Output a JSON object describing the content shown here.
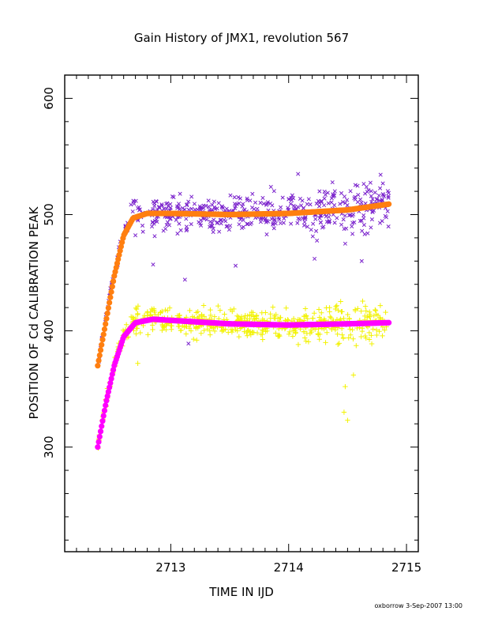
{
  "chart_data": {
    "type": "scatter",
    "title": "Gain History of JMX1, revolution 567",
    "xlabel": "TIME IN IJD",
    "ylabel": "POSITION OF Cd CALIBRATION PEAK",
    "xlim": [
      2712.1,
      2715.1
    ],
    "ylim": [
      210,
      620
    ],
    "x_ticks": [
      2713,
      2714,
      2715
    ],
    "y_ticks": [
      300,
      400,
      500,
      600
    ],
    "x_minor_step": 0.1,
    "y_minor_step": 20,
    "grid": false,
    "footer": "oxborrow  3-Sep-2007 13:00",
    "series": [
      {
        "role": "upper-raw-points",
        "marker": "x",
        "color": "#7a22cc",
        "x_start": 2712.38,
        "x_end": 2714.85,
        "n": 520,
        "seed": 11,
        "spread": 13,
        "spread_from_x": 2714.0,
        "spread_late": 18,
        "outliers": [
          [
            2713.12,
            444
          ],
          [
            2713.15,
            389
          ],
          [
            2712.85,
            457
          ],
          [
            2713.55,
            456
          ],
          [
            2714.22,
            462
          ],
          [
            2714.48,
            475
          ],
          [
            2714.62,
            460
          ],
          [
            2714.08,
            535
          ]
        ],
        "curve": [
          [
            2712.38,
            374
          ],
          [
            2712.45,
            412
          ],
          [
            2712.52,
            450
          ],
          [
            2712.6,
            485
          ],
          [
            2712.68,
            499
          ],
          [
            2712.8,
            502
          ],
          [
            2713.0,
            501
          ],
          [
            2713.5,
            500
          ],
          [
            2714.0,
            501
          ],
          [
            2714.5,
            504
          ],
          [
            2714.85,
            510
          ]
        ]
      },
      {
        "role": "lower-raw-points",
        "marker": "+",
        "color": "#f2f200",
        "x_start": 2712.38,
        "x_end": 2714.85,
        "n": 560,
        "seed": 29,
        "spread": 10,
        "spread_from_x": 2714.3,
        "spread_late": 15,
        "outliers": [
          [
            2714.47,
            330
          ],
          [
            2714.5,
            323
          ],
          [
            2714.48,
            352
          ],
          [
            2714.55,
            362
          ],
          [
            2713.22,
            392
          ],
          [
            2712.72,
            372
          ]
        ],
        "curve": [
          [
            2712.38,
            300
          ],
          [
            2712.45,
            340
          ],
          [
            2712.52,
            372
          ],
          [
            2712.6,
            396
          ],
          [
            2712.7,
            408
          ],
          [
            2712.85,
            410
          ],
          [
            2713.0,
            409
          ],
          [
            2713.5,
            406
          ],
          [
            2714.0,
            405
          ],
          [
            2714.5,
            406
          ],
          [
            2714.85,
            408
          ]
        ]
      },
      {
        "role": "upper-fit",
        "marker": "dot",
        "color": "#ff7f10",
        "x_start": 2712.38,
        "x_end": 2714.85,
        "n": 300,
        "curve": [
          [
            2712.38,
            370
          ],
          [
            2712.45,
            408
          ],
          [
            2712.52,
            447
          ],
          [
            2712.6,
            482
          ],
          [
            2712.68,
            497
          ],
          [
            2712.8,
            501
          ],
          [
            2713.0,
            501
          ],
          [
            2713.5,
            500
          ],
          [
            2714.0,
            501
          ],
          [
            2714.5,
            504
          ],
          [
            2714.85,
            509
          ]
        ]
      },
      {
        "role": "lower-fit",
        "marker": "dot",
        "color": "#ff00ff",
        "x_start": 2712.38,
        "x_end": 2714.85,
        "n": 300,
        "curve": [
          [
            2712.38,
            300
          ],
          [
            2712.45,
            338
          ],
          [
            2712.52,
            370
          ],
          [
            2712.6,
            395
          ],
          [
            2712.7,
            407
          ],
          [
            2712.85,
            410
          ],
          [
            2713.0,
            409
          ],
          [
            2713.5,
            406
          ],
          [
            2714.0,
            405
          ],
          [
            2714.5,
            406
          ],
          [
            2714.85,
            407
          ]
        ]
      }
    ]
  }
}
